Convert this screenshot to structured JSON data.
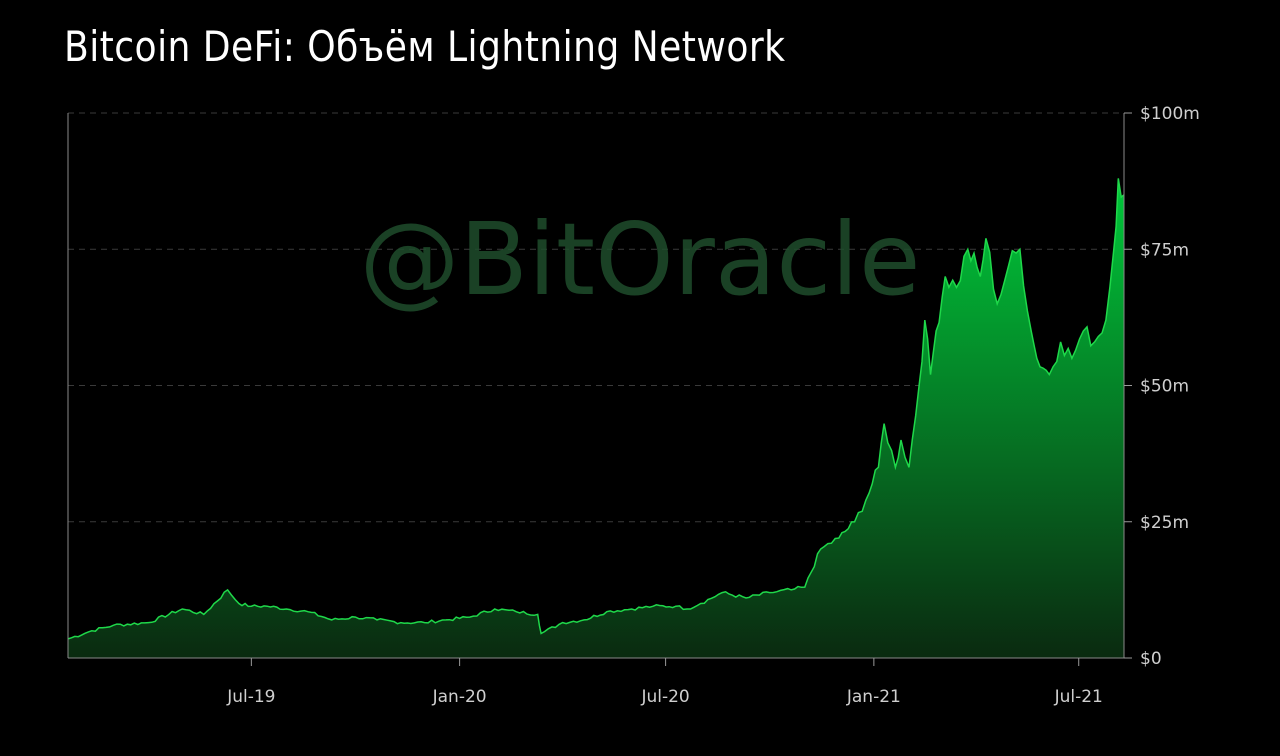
{
  "chart_data": {
    "type": "area",
    "title": "Bitcoin DeFi: Объём Lightning Network",
    "watermark": "@BitOracle",
    "x_tick_labels": [
      "Jul-19",
      "Jan-20",
      "Jul-20",
      "Jan-21",
      "Jul-21"
    ],
    "y_tick_labels": [
      "$0",
      "$25m",
      "$50m",
      "$75m",
      "$100m"
    ],
    "y_ticks": [
      0,
      25,
      50,
      75,
      100
    ],
    "ylim": [
      0,
      100
    ],
    "xlim": [
      "2019-01-20",
      "2021-08-10"
    ],
    "y_axis_position": "right",
    "grid": "horizontal-dashed",
    "colors": {
      "area_top": "#00c93a",
      "area_bottom": "#0a2a10",
      "line": "#1fd84a"
    },
    "series": [
      {
        "x": [
          "2019-01-20",
          "2019-02-10",
          "2019-03-01",
          "2019-04-01",
          "2019-05-01",
          "2019-05-20",
          "2019-06-10",
          "2019-06-20",
          "2019-07-01",
          "2019-07-15",
          "2019-08-01",
          "2019-08-20",
          "2019-09-10",
          "2019-10-01",
          "2019-10-20",
          "2019-11-10",
          "2019-12-01",
          "2019-12-20",
          "2020-01-10",
          "2020-02-01",
          "2020-02-20",
          "2020-03-10",
          "2020-03-13",
          "2020-04-01",
          "2020-04-20",
          "2020-05-10",
          "2020-06-01",
          "2020-06-20",
          "2020-07-10",
          "2020-07-20",
          "2020-08-01",
          "2020-08-20",
          "2020-09-10",
          "2020-10-01",
          "2020-10-20",
          "2020-11-01",
          "2020-11-15",
          "2020-12-01",
          "2020-12-15",
          "2020-12-25",
          "2021-01-05",
          "2021-01-10",
          "2021-01-20",
          "2021-01-25",
          "2021-02-01",
          "2021-02-10",
          "2021-02-15",
          "2021-02-20",
          "2021-02-25",
          "2021-03-05",
          "2021-03-15",
          "2021-03-25",
          "2021-04-05",
          "2021-04-10",
          "2021-04-20",
          "2021-04-30",
          "2021-05-10",
          "2021-05-20",
          "2021-05-25",
          "2021-06-05",
          "2021-06-15",
          "2021-06-25",
          "2021-07-05",
          "2021-07-15",
          "2021-07-25",
          "2021-08-01",
          "2021-08-05",
          "2021-08-10"
        ],
        "values": [
          3.5,
          5.0,
          6.0,
          6.5,
          9.0,
          8.0,
          12.5,
          10.0,
          9.5,
          9.5,
          9.0,
          8.5,
          7.0,
          7.5,
          7.0,
          6.5,
          6.5,
          7.0,
          7.5,
          9.0,
          8.5,
          8.0,
          4.5,
          6.5,
          7.0,
          8.5,
          9.0,
          9.5,
          9.5,
          9.0,
          10.0,
          12.0,
          11.0,
          12.0,
          12.5,
          13.0,
          20.0,
          22.0,
          25.0,
          29.0,
          35.0,
          43.0,
          35.0,
          40.0,
          35.0,
          50.0,
          62.0,
          52.0,
          60.0,
          70.0,
          68.0,
          75.0,
          70.0,
          77.0,
          65.0,
          72.0,
          75.0,
          60.0,
          55.0,
          52.0,
          58.0,
          55.0,
          60.0,
          58.0,
          62.0,
          75.0,
          88.0,
          85.0
        ]
      }
    ]
  }
}
